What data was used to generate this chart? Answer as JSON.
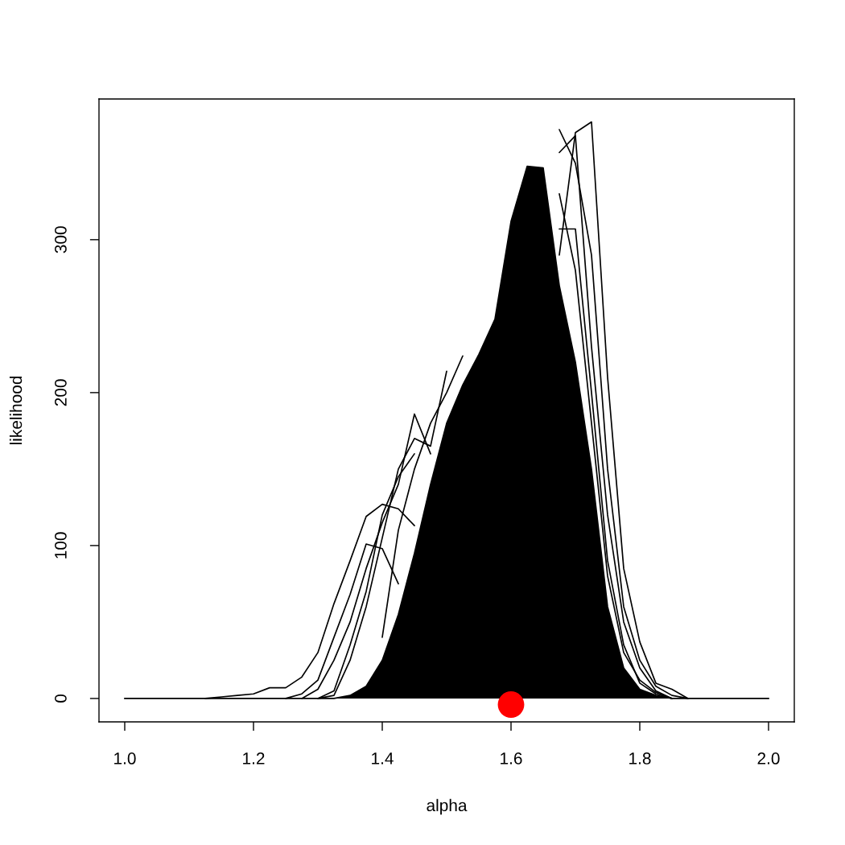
{
  "chart_data": {
    "type": "line",
    "xlabel": "alpha",
    "ylabel": "likelihood",
    "x": [
      1,
      1.025,
      1.05,
      1.075,
      1.1,
      1.125,
      1.15,
      1.175,
      1.2,
      1.225,
      1.25,
      1.275,
      1.3,
      1.325,
      1.35,
      1.375,
      1.4,
      1.425,
      1.45,
      1.475,
      1.5,
      1.525,
      1.55,
      1.575,
      1.6,
      1.625,
      1.65,
      1.675,
      1.7,
      1.725,
      1.75,
      1.775,
      1.8,
      1.825,
      1.85,
      1.875,
      1.9,
      1.925,
      1.95,
      1.975,
      2
    ],
    "series": [
      {
        "type": "area",
        "color": "#000000",
        "values": [
          0,
          0,
          0,
          0,
          0,
          0,
          0,
          0,
          0,
          0,
          0,
          0,
          0,
          0,
          2,
          8,
          25,
          55,
          95,
          140,
          180,
          205,
          225,
          248,
          312,
          348,
          347,
          270,
          220,
          150,
          60,
          20,
          6,
          2,
          0,
          0,
          0,
          0,
          0,
          0,
          0
        ]
      },
      {
        "color": "#000000",
        "x": [
          1.125,
          1.15,
          1.175,
          1.2,
          1.225,
          1.25,
          1.275,
          1.3,
          1.325,
          1.35,
          1.375,
          1.4,
          1.425,
          1.45
        ],
        "values": [
          0,
          1,
          2,
          3,
          7,
          7,
          14,
          30,
          62,
          90,
          119,
          127,
          124,
          113
        ]
      },
      {
        "color": "#000000",
        "x": [
          1.25,
          1.275,
          1.3,
          1.325,
          1.35,
          1.375,
          1.4,
          1.425
        ],
        "values": [
          0,
          3,
          12,
          40,
          68,
          101,
          98,
          75
        ]
      },
      {
        "color": "#000000",
        "x": [
          1.275,
          1.3,
          1.325,
          1.35,
          1.375,
          1.4,
          1.425,
          1.45,
          1.475
        ],
        "values": [
          0,
          6,
          25,
          50,
          85,
          115,
          140,
          186,
          160
        ]
      },
      {
        "color": "#000000",
        "x": [
          1.3,
          1.325,
          1.35,
          1.375,
          1.4,
          1.425,
          1.45,
          1.475,
          1.5
        ],
        "values": [
          0,
          2,
          25,
          60,
          105,
          150,
          170,
          165,
          214
        ]
      },
      {
        "color": "#000000",
        "x": [
          1.4,
          1.425,
          1.45,
          1.475,
          1.5,
          1.525
        ],
        "values": [
          40,
          110,
          150,
          180,
          200,
          224
        ]
      },
      {
        "color": "#000000",
        "x": [
          1.3,
          1.325,
          1.35,
          1.375,
          1.4,
          1.425,
          1.45
        ],
        "values": [
          0,
          5,
          35,
          70,
          120,
          145,
          160
        ]
      },
      {
        "color": "#000000",
        "x": [
          1.675,
          1.7,
          1.725,
          1.75,
          1.775,
          1.8,
          1.825,
          1.85,
          1.875
        ],
        "values": [
          290,
          370,
          377,
          210,
          85,
          37,
          10,
          6,
          0
        ]
      },
      {
        "color": "#000000",
        "x": [
          1.675,
          1.7,
          1.725,
          1.75,
          1.775,
          1.8,
          1.825,
          1.85,
          1.875
        ],
        "values": [
          372,
          350,
          290,
          150,
          60,
          25,
          8,
          2,
          0
        ]
      },
      {
        "color": "#000000",
        "x": [
          1.675,
          1.7,
          1.725,
          1.75,
          1.775,
          1.8,
          1.825,
          1.85
        ],
        "values": [
          357,
          368,
          230,
          120,
          50,
          20,
          5,
          0
        ]
      },
      {
        "color": "#000000",
        "x": [
          1.675,
          1.7,
          1.725,
          1.75,
          1.775,
          1.8,
          1.825,
          1.85
        ],
        "values": [
          307,
          307,
          200,
          90,
          35,
          10,
          3,
          0
        ]
      },
      {
        "color": "#000000",
        "x": [
          1.675,
          1.7,
          1.725,
          1.75,
          1.775,
          1.8,
          1.825,
          1.85
        ],
        "values": [
          330,
          280,
          180,
          80,
          30,
          12,
          4,
          0
        ]
      },
      {
        "type": "scatter",
        "color": "#ff0000",
        "marker": "circle",
        "x": [
          1.6
        ],
        "values": [
          -4
        ]
      }
    ],
    "xlim": [
      0.96,
      2.04
    ],
    "ylim": [
      -15.3,
      392
    ],
    "xticks": [
      {
        "value": 1,
        "label": "1.0"
      },
      {
        "value": 1.2,
        "label": "1.2"
      },
      {
        "value": 1.4,
        "label": "1.4"
      },
      {
        "value": 1.6,
        "label": "1.6"
      },
      {
        "value": 1.8,
        "label": "1.8"
      },
      {
        "value": 2,
        "label": "2.0"
      }
    ],
    "yticks": [
      0,
      100,
      200,
      300
    ]
  }
}
